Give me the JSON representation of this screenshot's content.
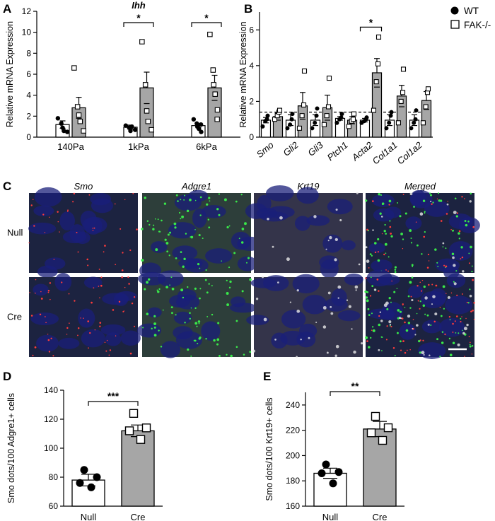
{
  "panel_labels": {
    "a": "A",
    "b": "B",
    "c": "C",
    "d": "D",
    "e": "E"
  },
  "legend": {
    "wt": "WT",
    "fak": "FAK-/-"
  },
  "micrographs": {
    "columns": [
      "Smo",
      "Adgre1",
      "Krt19",
      "Merged"
    ],
    "rows": [
      "Null",
      "Cre"
    ],
    "colors": {
      "nucleus": "#1a1f7a",
      "green": "#39e84a",
      "red": "#ff3b3b",
      "white": "#e8e8e8",
      "bg": "#1c2340"
    }
  },
  "chart_data": [
    {
      "panel": "A",
      "type": "bar",
      "title": "Ihh",
      "ylabel": "Relative mRNA Expression",
      "ylim": [
        0,
        12
      ],
      "yticks": [
        "0",
        "2",
        "4",
        "6",
        "8",
        "10",
        "12"
      ],
      "categories": [
        "140Pa",
        "1kPa",
        "6kPa"
      ],
      "series": [
        {
          "name": "WT",
          "values": [
            1.2,
            0.95,
            1.1
          ],
          "sem": [
            0.35,
            0.2,
            0.2
          ],
          "points": [
            [
              1.8,
              1.3,
              0.9,
              0.6,
              0.5
            ],
            [
              1.1,
              0.9,
              0.6,
              1.0,
              0.7
            ],
            [
              1.7,
              1.3,
              1.0,
              0.8,
              0.5,
              1.2
            ]
          ]
        },
        {
          "name": "FAK-/-",
          "values": [
            2.8,
            4.7,
            4.7
          ],
          "sem": [
            1.0,
            1.5,
            1.2
          ],
          "points": [
            [
              6.6,
              2.9,
              2.1,
              1.5,
              0.6
            ],
            [
              9.1,
              5.0,
              2.5,
              1.5,
              0.7
            ],
            [
              9.8,
              6.4,
              5.0,
              4.1,
              2.6,
              1.7
            ]
          ]
        }
      ],
      "significance": [
        {
          "category": "1kPa",
          "label": "*"
        },
        {
          "category": "6kPa",
          "label": "*"
        }
      ]
    },
    {
      "panel": "B",
      "type": "bar",
      "ylabel": "Relative mRNA Expression",
      "ylim": [
        0,
        7
      ],
      "yticks": [
        "0",
        "2",
        "4",
        "6"
      ],
      "reference_line": 1.4,
      "categories": [
        "Smo",
        "Gli2",
        "Gli3",
        "Ptch1",
        "Acta2",
        "Col1a1",
        "Col1a2"
      ],
      "series": [
        {
          "name": "WT",
          "values": [
            0.95,
            0.95,
            0.95,
            1.05,
            0.95,
            0.95,
            0.95
          ],
          "sem": [
            0.15,
            0.3,
            0.3,
            0.1,
            0.1,
            0.3,
            0.3
          ],
          "points": [
            [
              0.6,
              0.9,
              1.0,
              1.2
            ],
            [
              0.5,
              0.7,
              1.0,
              1.3
            ],
            [
              0.5,
              0.8,
              1.2,
              1.6
            ],
            [
              0.8,
              1.0,
              1.1,
              1.3
            ],
            [
              0.8,
              0.9,
              1.0,
              1.1
            ],
            [
              0.5,
              0.8,
              1.2,
              1.4
            ],
            [
              0.5,
              0.8,
              1.0,
              1.5
            ]
          ]
        },
        {
          "name": "FAK-/-",
          "values": [
            1.15,
            1.75,
            1.65,
            0.95,
            3.6,
            2.3,
            2.05
          ],
          "sem": [
            0.2,
            0.75,
            0.7,
            0.2,
            0.8,
            0.6,
            0.5
          ],
          "points": [
            [
              1.0,
              1.2,
              1.4,
              1.5
            ],
            [
              0.5,
              1.2,
              1.8,
              3.7
            ],
            [
              0.7,
              1.2,
              1.7,
              3.3
            ],
            [
              0.6,
              0.9,
              1.0,
              1.3
            ],
            [
              1.5,
              3.1,
              4.1,
              5.6
            ],
            [
              0.8,
              2.0,
              2.5,
              3.8
            ],
            [
              0.8,
              1.7,
              2.5,
              2.7
            ]
          ]
        }
      ],
      "significance": [
        {
          "category": "Acta2",
          "label": "*"
        }
      ]
    },
    {
      "panel": "D",
      "type": "bar",
      "ylabel": "Smo dots/100 Adgre1+ cells",
      "ylim": [
        60,
        140
      ],
      "yticks": [
        "60",
        "80",
        "100",
        "120",
        "140"
      ],
      "categories": [
        "Null",
        "Cre"
      ],
      "values": [
        78,
        112
      ],
      "sem": [
        4,
        4
      ],
      "points": [
        [
          85,
          80,
          76,
          73
        ],
        [
          124,
          114,
          112,
          106
        ]
      ],
      "significance": {
        "label": "***"
      }
    },
    {
      "panel": "E",
      "type": "bar",
      "ylabel": "Smo dots/100 Krt19+ cells",
      "ylim": [
        160,
        250
      ],
      "yticks": [
        "160",
        "180",
        "200",
        "220",
        "240"
      ],
      "categories": [
        "Null",
        "Cre"
      ],
      "values": [
        186,
        221
      ],
      "sem": [
        4,
        6
      ],
      "points": [
        [
          193,
          187,
          186,
          178
        ],
        [
          231,
          222,
          218,
          212
        ]
      ],
      "significance": {
        "label": "**"
      }
    }
  ]
}
